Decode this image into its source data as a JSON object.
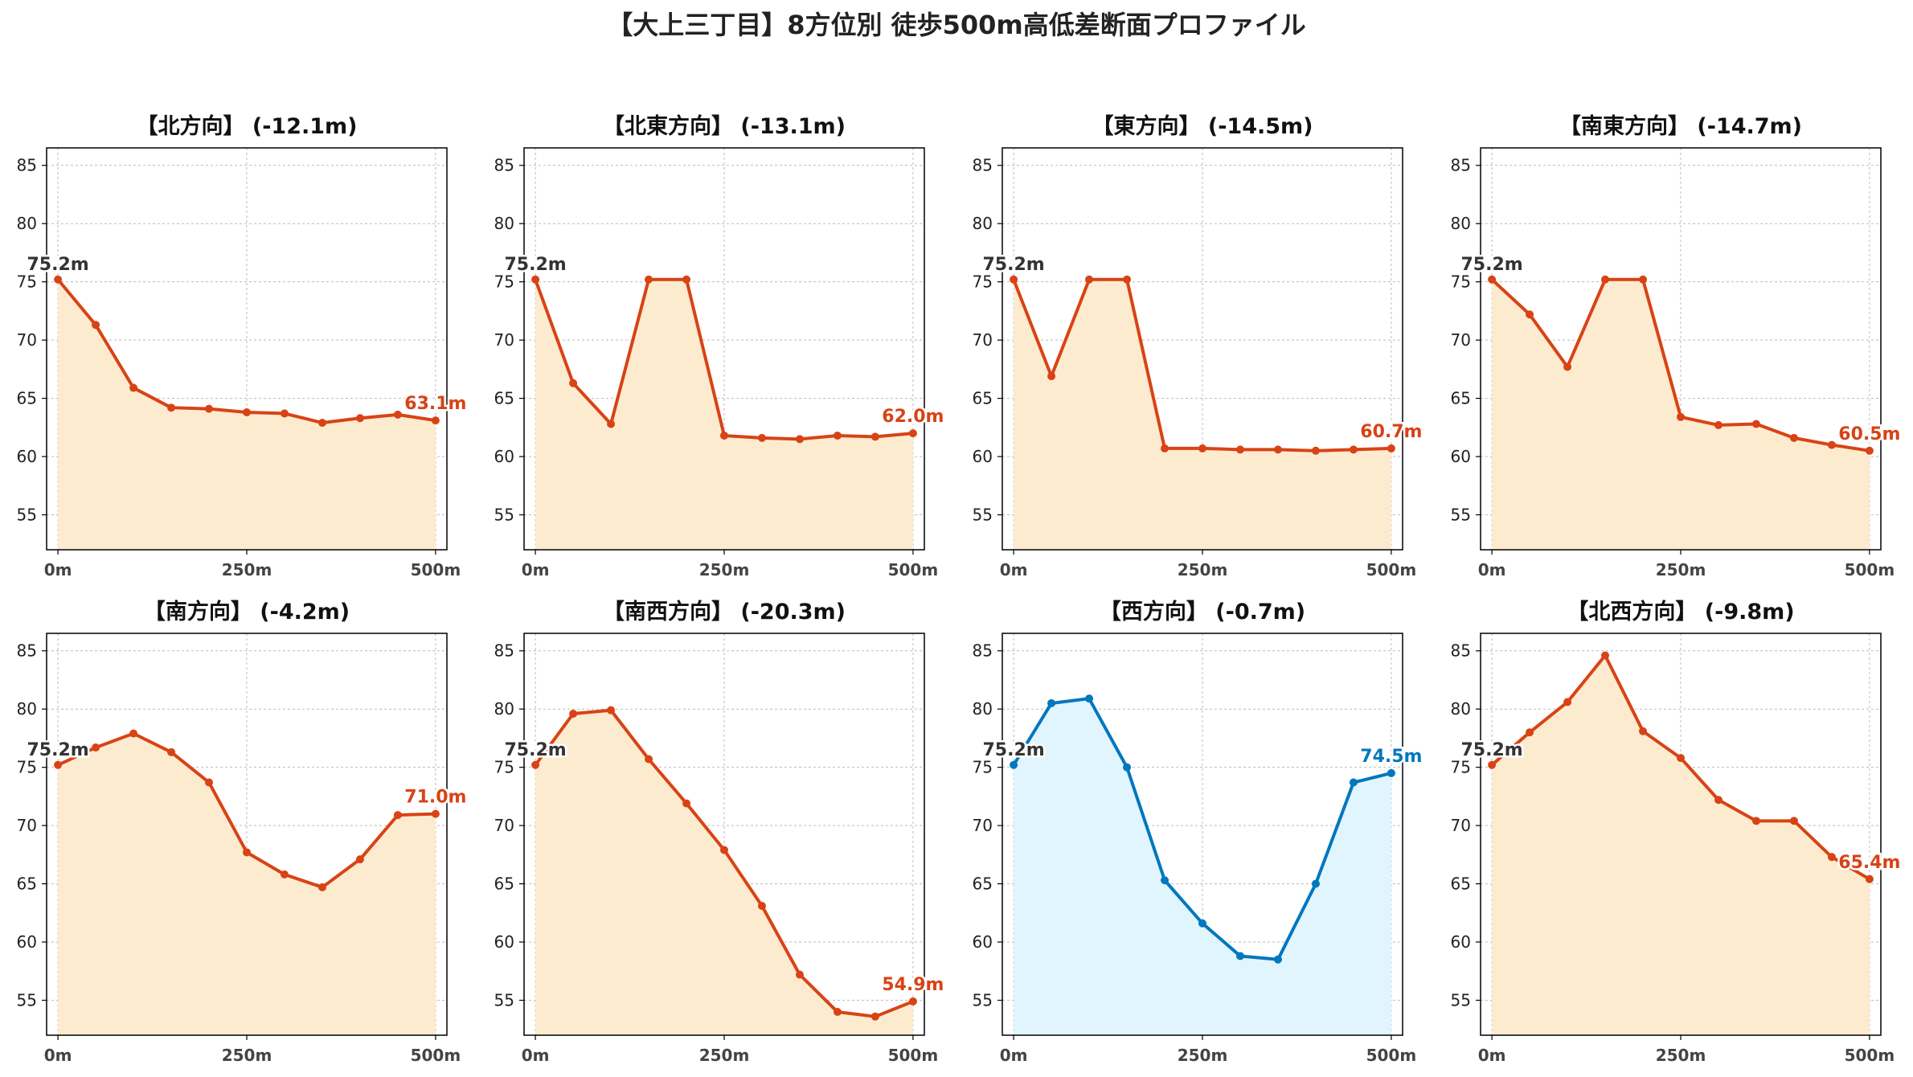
{
  "figure": {
    "title": "【大上三丁目】8方位別 徒歩500m高低差断面プロファイル"
  },
  "style": {
    "down_line_color": "#d84315",
    "down_fill_color": "#fdebd0",
    "up_line_color": "#0277bd",
    "up_fill_color": "#e1f5fe",
    "start_label_color": "#333333",
    "grid_color": "#bbbbbb"
  },
  "chart_data": [
    {
      "type": "area",
      "title": "【北方向】 (-12.1m)",
      "x_ticks": [
        "0m",
        "250m",
        "500m"
      ],
      "y_ticks": [
        55,
        60,
        65,
        70,
        75,
        80,
        85
      ],
      "ylim": [
        52,
        86.5
      ],
      "xlim": [
        -15,
        515
      ],
      "grid": true,
      "x": [
        0,
        50,
        100,
        150,
        200,
        250,
        300,
        350,
        400,
        450,
        500
      ],
      "values": [
        75.2,
        71.3,
        65.9,
        64.2,
        64.1,
        63.8,
        63.7,
        62.9,
        63.3,
        63.6,
        63.1
      ],
      "start_label": "75.2m",
      "end_label": "63.1m",
      "trend": "down"
    },
    {
      "type": "area",
      "title": "【北東方向】 (-13.1m)",
      "x_ticks": [
        "0m",
        "250m",
        "500m"
      ],
      "y_ticks": [
        55,
        60,
        65,
        70,
        75,
        80,
        85
      ],
      "ylim": [
        52,
        86.5
      ],
      "xlim": [
        -15,
        515
      ],
      "grid": true,
      "x": [
        0,
        50,
        100,
        150,
        200,
        250,
        300,
        350,
        400,
        450,
        500
      ],
      "values": [
        75.2,
        66.3,
        62.8,
        75.2,
        75.2,
        61.8,
        61.6,
        61.5,
        61.8,
        61.7,
        62.0
      ],
      "start_label": "75.2m",
      "end_label": "62.0m",
      "trend": "down"
    },
    {
      "type": "area",
      "title": "【東方向】 (-14.5m)",
      "x_ticks": [
        "0m",
        "250m",
        "500m"
      ],
      "y_ticks": [
        55,
        60,
        65,
        70,
        75,
        80,
        85
      ],
      "ylim": [
        52,
        86.5
      ],
      "xlim": [
        -15,
        515
      ],
      "grid": true,
      "x": [
        0,
        50,
        100,
        150,
        200,
        250,
        300,
        350,
        400,
        450,
        500
      ],
      "values": [
        75.2,
        66.9,
        75.2,
        75.2,
        60.7,
        60.7,
        60.6,
        60.6,
        60.5,
        60.6,
        60.7
      ],
      "start_label": "75.2m",
      "end_label": "60.7m",
      "trend": "down"
    },
    {
      "type": "area",
      "title": "【南東方向】 (-14.7m)",
      "x_ticks": [
        "0m",
        "250m",
        "500m"
      ],
      "y_ticks": [
        55,
        60,
        65,
        70,
        75,
        80,
        85
      ],
      "ylim": [
        52,
        86.5
      ],
      "xlim": [
        -15,
        515
      ],
      "grid": true,
      "x": [
        0,
        50,
        100,
        150,
        200,
        250,
        300,
        350,
        400,
        450,
        500
      ],
      "values": [
        75.2,
        72.2,
        67.7,
        75.2,
        75.2,
        63.4,
        62.7,
        62.8,
        61.6,
        61.0,
        60.5
      ],
      "start_label": "75.2m",
      "end_label": "60.5m",
      "trend": "down"
    },
    {
      "type": "area",
      "title": "【南方向】 (-4.2m)",
      "x_ticks": [
        "0m",
        "250m",
        "500m"
      ],
      "y_ticks": [
        55,
        60,
        65,
        70,
        75,
        80,
        85
      ],
      "ylim": [
        52,
        86.5
      ],
      "xlim": [
        -15,
        515
      ],
      "grid": true,
      "x": [
        0,
        50,
        100,
        150,
        200,
        250,
        300,
        350,
        400,
        450,
        500
      ],
      "values": [
        75.2,
        76.7,
        77.9,
        76.3,
        73.7,
        67.7,
        65.8,
        64.7,
        67.1,
        70.9,
        71.0
      ],
      "start_label": "75.2m",
      "end_label": "71.0m",
      "trend": "down"
    },
    {
      "type": "area",
      "title": "【南西方向】 (-20.3m)",
      "x_ticks": [
        "0m",
        "250m",
        "500m"
      ],
      "y_ticks": [
        55,
        60,
        65,
        70,
        75,
        80,
        85
      ],
      "ylim": [
        52,
        86.5
      ],
      "xlim": [
        -15,
        515
      ],
      "grid": true,
      "x": [
        0,
        50,
        100,
        150,
        200,
        250,
        300,
        350,
        400,
        450,
        500
      ],
      "values": [
        75.2,
        79.6,
        79.9,
        75.7,
        71.9,
        67.9,
        63.1,
        57.2,
        54.0,
        53.6,
        54.9
      ],
      "start_label": "75.2m",
      "end_label": "54.9m",
      "trend": "down"
    },
    {
      "type": "area",
      "title": "【西方向】 (-0.7m)",
      "x_ticks": [
        "0m",
        "250m",
        "500m"
      ],
      "y_ticks": [
        55,
        60,
        65,
        70,
        75,
        80,
        85
      ],
      "ylim": [
        52,
        86.5
      ],
      "xlim": [
        -15,
        515
      ],
      "grid": true,
      "x": [
        0,
        50,
        100,
        150,
        200,
        250,
        300,
        350,
        400,
        450,
        500
      ],
      "values": [
        75.2,
        80.5,
        80.9,
        75.0,
        65.3,
        61.6,
        58.8,
        58.5,
        65.0,
        73.7,
        74.5
      ],
      "start_label": "75.2m",
      "end_label": "74.5m",
      "trend": "up"
    },
    {
      "type": "area",
      "title": "【北西方向】 (-9.8m)",
      "x_ticks": [
        "0m",
        "250m",
        "500m"
      ],
      "y_ticks": [
        55,
        60,
        65,
        70,
        75,
        80,
        85
      ],
      "ylim": [
        52,
        86.5
      ],
      "xlim": [
        -15,
        515
      ],
      "grid": true,
      "x": [
        0,
        50,
        100,
        150,
        200,
        250,
        300,
        350,
        400,
        450,
        500
      ],
      "values": [
        75.2,
        78.0,
        80.6,
        84.6,
        78.1,
        75.8,
        72.2,
        70.4,
        70.4,
        67.3,
        65.4
      ],
      "start_label": "75.2m",
      "end_label": "65.4m",
      "trend": "down"
    }
  ]
}
